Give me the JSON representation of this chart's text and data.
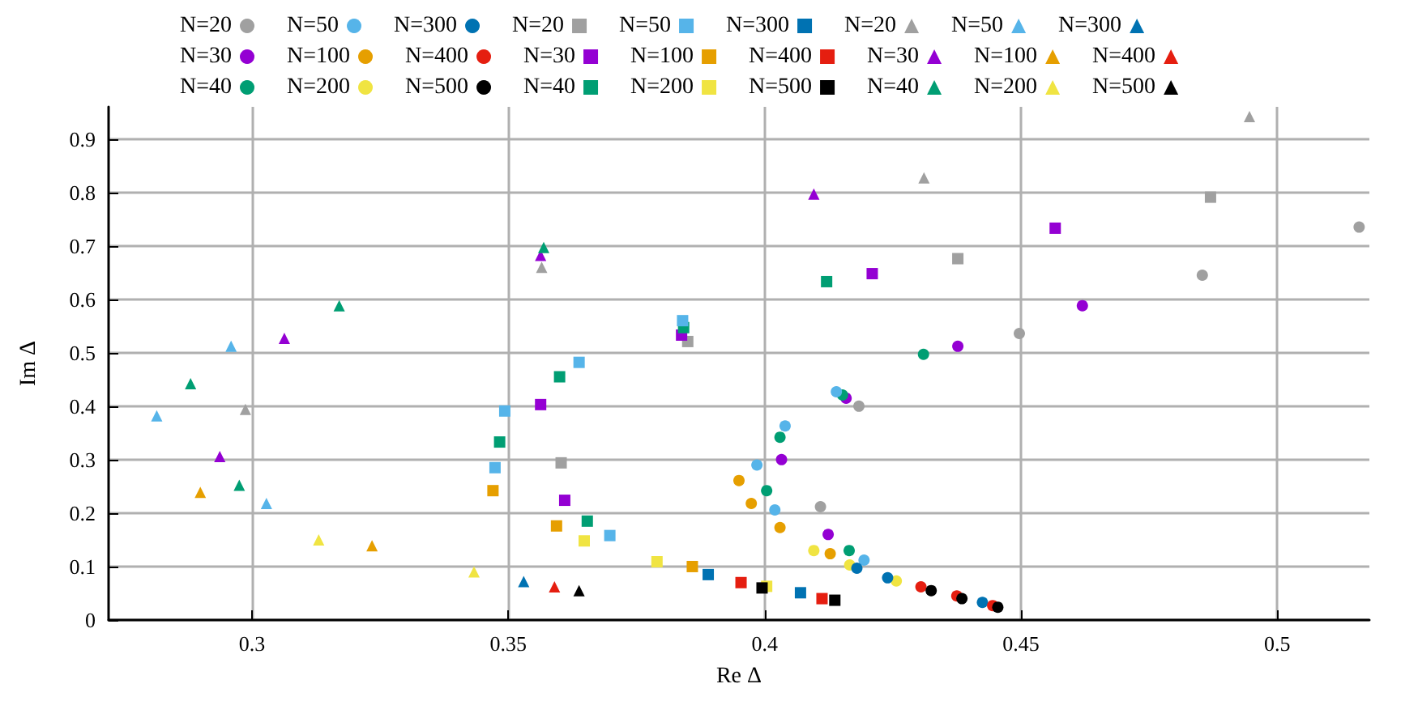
{
  "chart_data": {
    "type": "scatter",
    "xlabel": "Re Δ",
    "ylabel": "Im Δ",
    "xlim": [
      0.272,
      0.518
    ],
    "ylim": [
      0,
      0.96
    ],
    "xticks": [
      0.3,
      0.35,
      0.4,
      0.45,
      0.5
    ],
    "yticks": [
      0,
      0.1,
      0.2,
      0.3,
      0.4,
      0.5,
      0.6,
      0.7,
      0.8,
      0.9
    ],
    "grid": true,
    "legend": "top",
    "series": [
      {
        "name": "N=20",
        "marker": "circle",
        "color": "#a0a0a0",
        "x": [
          0.516,
          0.4854,
          0.4497,
          0.4184,
          0.4109
        ],
        "values": [
          0.735,
          0.645,
          0.536,
          0.4,
          0.212
        ]
      },
      {
        "name": "N=30",
        "marker": "circle",
        "color": "#9400d3",
        "x": [
          0.462,
          0.4377,
          0.4159,
          0.4033,
          0.4124
        ],
        "values": [
          0.588,
          0.512,
          0.415,
          0.3,
          0.16
        ]
      },
      {
        "name": "N=40",
        "marker": "circle",
        "color": "#009e73",
        "x": [
          0.431,
          0.4152,
          0.403,
          0.4004,
          0.4165
        ],
        "values": [
          0.497,
          0.421,
          0.342,
          0.242,
          0.13
        ]
      },
      {
        "name": "N=50",
        "marker": "circle",
        "color": "#56b4e9",
        "x": [
          0.414,
          0.404,
          0.3985,
          0.402,
          0.4194
        ],
        "values": [
          0.427,
          0.363,
          0.29,
          0.206,
          0.112
        ]
      },
      {
        "name": "N=100",
        "marker": "circle",
        "color": "#e69f00",
        "x": [
          0.395,
          0.3974,
          0.403,
          0.4128
        ],
        "values": [
          0.261,
          0.218,
          0.173,
          0.124
        ]
      },
      {
        "name": "N=200",
        "marker": "circle",
        "color": "#f0e442",
        "x": [
          0.4096,
          0.4166,
          0.4257
        ],
        "values": [
          0.13,
          0.103,
          0.073
        ]
      },
      {
        "name": "N=300",
        "marker": "circle",
        "color": "#0072b2",
        "x": [
          0.418,
          0.424,
          0.4425
        ],
        "values": [
          0.097,
          0.079,
          0.033
        ]
      },
      {
        "name": "N=400",
        "marker": "circle",
        "color": "#e51e10",
        "x": [
          0.4305,
          0.4375,
          0.4445
        ],
        "values": [
          0.062,
          0.045,
          0.027
        ]
      },
      {
        "name": "N=500",
        "marker": "circle",
        "color": "#000000",
        "x": [
          0.4325,
          0.4385,
          0.4455
        ],
        "values": [
          0.055,
          0.04,
          0.024
        ]
      },
      {
        "name": "N=20",
        "marker": "square",
        "color": "#a0a0a0",
        "x": [
          0.487,
          0.4377,
          0.385,
          0.3603
        ],
        "values": [
          0.791,
          0.676,
          0.521,
          0.294
        ]
      },
      {
        "name": "N=30",
        "marker": "square",
        "color": "#9400d3",
        "x": [
          0.4567,
          0.421,
          0.3838,
          0.3563,
          0.361
        ],
        "values": [
          0.733,
          0.648,
          0.533,
          0.403,
          0.224
        ]
      },
      {
        "name": "N=40",
        "marker": "square",
        "color": "#009e73",
        "x": [
          0.4121,
          0.3842,
          0.36,
          0.3483,
          0.3654
        ],
        "values": [
          0.633,
          0.547,
          0.455,
          0.333,
          0.185
        ]
      },
      {
        "name": "N=50",
        "marker": "square",
        "color": "#56b4e9",
        "x": [
          0.384,
          0.3638,
          0.3493,
          0.3474,
          0.3698
        ],
        "values": [
          0.56,
          0.482,
          0.391,
          0.285,
          0.158
        ]
      },
      {
        "name": "N=100",
        "marker": "square",
        "color": "#e69f00",
        "x": [
          0.347,
          0.3594,
          0.3859
        ],
        "values": [
          0.242,
          0.176,
          0.1
        ]
      },
      {
        "name": "N=200",
        "marker": "square",
        "color": "#f0e442",
        "x": [
          0.3648,
          0.379,
          0.4004
        ],
        "values": [
          0.148,
          0.109,
          0.063
        ]
      },
      {
        "name": "N=300",
        "marker": "square",
        "color": "#0072b2",
        "x": [
          0.389,
          0.407
        ],
        "values": [
          0.085,
          0.051
        ]
      },
      {
        "name": "N=400",
        "marker": "square",
        "color": "#e51e10",
        "x": [
          0.3954,
          0.4112
        ],
        "values": [
          0.07,
          0.04
        ]
      },
      {
        "name": "N=500",
        "marker": "square",
        "color": "#000000",
        "x": [
          0.3995,
          0.4137
        ],
        "values": [
          0.06,
          0.037
        ]
      },
      {
        "name": "N=20",
        "marker": "triangle",
        "color": "#a0a0a0",
        "x": [
          0.4946,
          0.4311,
          0.3565,
          0.2987
        ],
        "values": [
          0.942,
          0.827,
          0.66,
          0.394
        ]
      },
      {
        "name": "N=30",
        "marker": "triangle",
        "color": "#9400d3",
        "x": [
          0.4096,
          0.3563,
          0.3063,
          0.2937
        ],
        "values": [
          0.797,
          0.682,
          0.527,
          0.306
        ]
      },
      {
        "name": "N=40",
        "marker": "triangle",
        "color": "#009e73",
        "x": [
          0.3569,
          0.317,
          0.288,
          0.2975
        ],
        "values": [
          0.697,
          0.588,
          0.442,
          0.252
        ]
      },
      {
        "name": "N=50",
        "marker": "triangle",
        "color": "#56b4e9",
        "x": [
          0.2959,
          0.2814,
          0.3028
        ],
        "values": [
          0.512,
          0.382,
          0.218
        ]
      },
      {
        "name": "N=100",
        "marker": "triangle",
        "color": "#e69f00",
        "x": [
          0.2899,
          0.3234
        ],
        "values": [
          0.239,
          0.139
        ]
      },
      {
        "name": "N=200",
        "marker": "triangle",
        "color": "#f0e442",
        "x": [
          0.313,
          0.3433
        ],
        "values": [
          0.15,
          0.09
        ]
      },
      {
        "name": "N=300",
        "marker": "triangle",
        "color": "#0072b2",
        "x": [
          0.353
        ],
        "values": [
          0.072
        ]
      },
      {
        "name": "N=400",
        "marker": "triangle",
        "color": "#e51e10",
        "x": [
          0.359
        ],
        "values": [
          0.062
        ]
      },
      {
        "name": "N=500",
        "marker": "triangle",
        "color": "#000000",
        "x": [
          0.3638
        ],
        "values": [
          0.055
        ]
      }
    ]
  }
}
